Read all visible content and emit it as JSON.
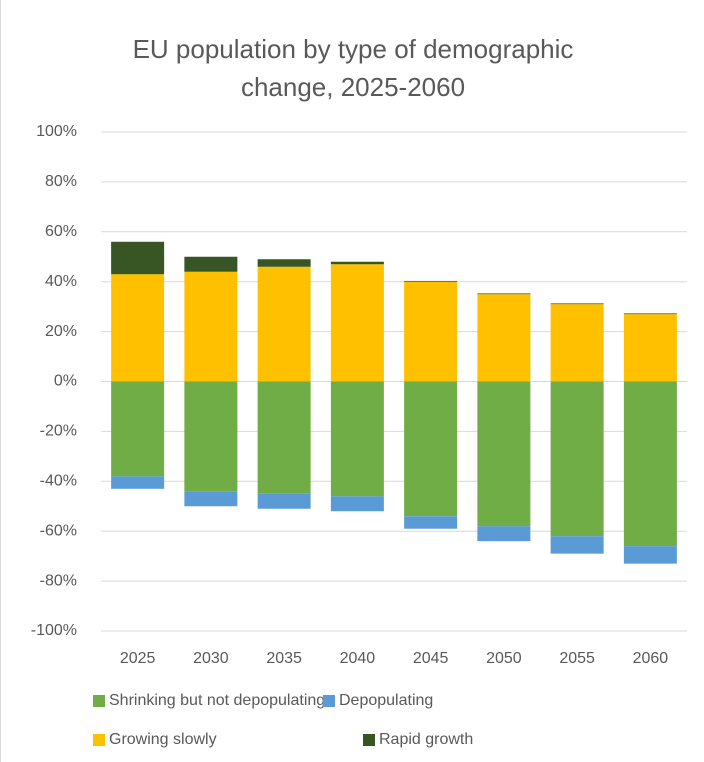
{
  "chart_data": {
    "type": "stacked_bar",
    "title": "EU population by type of demographic change, 2025-2060",
    "categories": [
      "2025",
      "2030",
      "2035",
      "2040",
      "2045",
      "2050",
      "2055",
      "2060"
    ],
    "series": [
      {
        "name": "Shrinking but not depopulating",
        "color": "#70ad47",
        "values": [
          -38,
          -44,
          -45,
          -46,
          -54,
          -58,
          -62,
          -66
        ]
      },
      {
        "name": "Depopulating",
        "color": "#5b9bd5",
        "values": [
          -5,
          -6,
          -6,
          -6,
          -5,
          -6,
          -7,
          -7
        ]
      },
      {
        "name": "Growing slowly",
        "color": "#ffc000",
        "values": [
          43,
          44,
          46,
          47,
          40,
          35,
          31,
          27
        ]
      },
      {
        "name": "Rapid growth",
        "color": "#375623",
        "values": [
          13,
          6,
          3,
          1,
          0.3,
          0.3,
          0.3,
          0.3
        ]
      }
    ],
    "ylim": [
      -100,
      100
    ],
    "yticks": [
      {
        "value": -100,
        "label": "-100%"
      },
      {
        "value": -80,
        "label": "-80%"
      },
      {
        "value": -60,
        "label": "-60%"
      },
      {
        "value": -40,
        "label": "-40%"
      },
      {
        "value": -20,
        "label": "-20%"
      },
      {
        "value": 0,
        "label": "0%"
      },
      {
        "value": 20,
        "label": "20%"
      },
      {
        "value": 40,
        "label": "40%"
      },
      {
        "value": 60,
        "label": "60%"
      },
      {
        "value": 80,
        "label": "80%"
      },
      {
        "value": 100,
        "label": "100%"
      }
    ],
    "grid": true
  }
}
